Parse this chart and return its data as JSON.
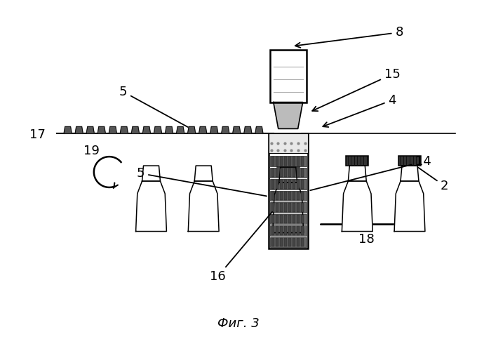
{
  "title": "Фиг. 3",
  "bg": "#ffffff",
  "black": "#000000",
  "gray_dark": "#444444",
  "gray_mid": "#888888",
  "gray_light": "#cccccc"
}
